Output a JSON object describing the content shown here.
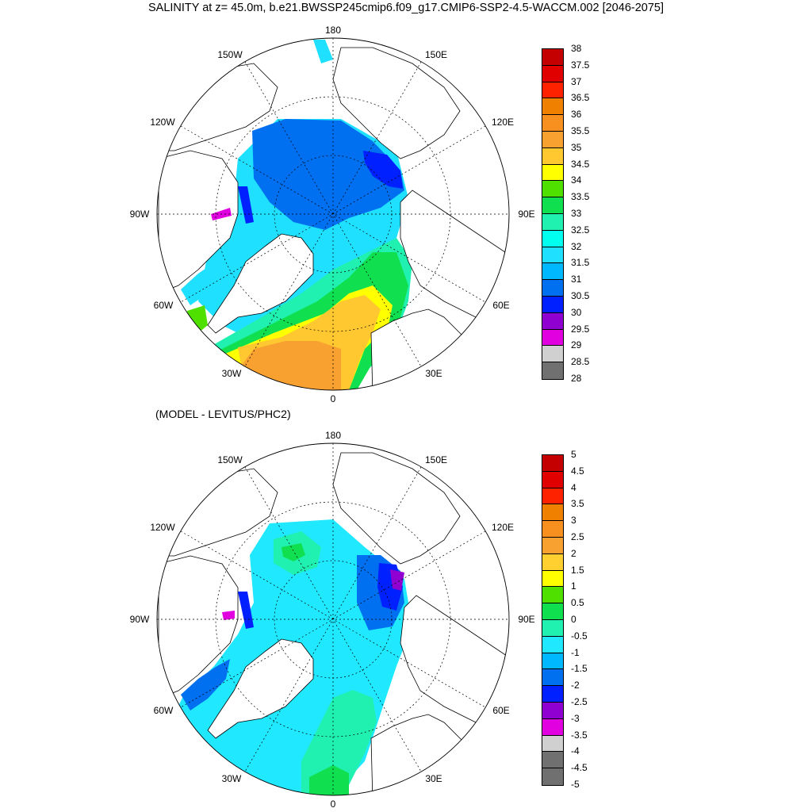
{
  "figure": {
    "title": "SALINITY at z=  45.0m, b.e21.BWSSP245cmip6.f09_g17.CMIP6-SSP2-4.5-WACCM.002 [2046-2075]",
    "bottom_title": "(MODEL - LEVITUS/PHC2)"
  },
  "maps": [
    {
      "id": "salinity",
      "longitude_labels": [
        "180",
        "150E",
        "120E",
        "90E",
        "60E",
        "30E",
        "0",
        "30W",
        "60W",
        "90W",
        "120W",
        "150W"
      ],
      "colorbar": {
        "labels": [
          "38",
          "37.5",
          "37",
          "36.5",
          "36",
          "35.5",
          "35",
          "34.5",
          "34",
          "33.5",
          "33",
          "32.5",
          "32",
          "31.5",
          "31",
          "30.5",
          "30",
          "29.5",
          "29",
          "28.5",
          "28"
        ],
        "colors": [
          "#c40000",
          "#e00000",
          "#ff2200",
          "#f08000",
          "#f89020",
          "#f8a030",
          "#ffc830",
          "#ffff00",
          "#50e000",
          "#10e050",
          "#20f0b0",
          "#00ffee",
          "#20e0ff",
          "#00b8ff",
          "#0070f0",
          "#0020ff",
          "#9000d0",
          "#e000e0",
          "#d0d0d0",
          "#707070"
        ]
      }
    },
    {
      "id": "difference",
      "longitude_labels": [
        "180",
        "150E",
        "120E",
        "90E",
        "60E",
        "30E",
        "0",
        "30W",
        "60W",
        "90W",
        "120W",
        "150W"
      ],
      "colorbar": {
        "labels": [
          "5",
          "4.5",
          "4",
          "3.5",
          "3",
          "2.5",
          "2",
          "1.5",
          "1",
          "0.5",
          "0",
          "-0.5",
          "-1",
          "-1.5",
          "-2",
          "-2.5",
          "-3",
          "-3.5",
          "-4",
          "-4.5",
          "-5"
        ],
        "colors": [
          "#c40000",
          "#e00000",
          "#ff2200",
          "#f08000",
          "#f89020",
          "#f8a030",
          "#ffd030",
          "#ffff00",
          "#50e000",
          "#10e050",
          "#20f0b0",
          "#20e8ff",
          "#00b8ff",
          "#0070f0",
          "#0020ff",
          "#9000d0",
          "#e000e0",
          "#d0d0d0",
          "#707070",
          "#707070"
        ]
      }
    }
  ],
  "colors": {
    "land_outline": "#000000",
    "grid": "#000000",
    "background": "#ffffff"
  }
}
